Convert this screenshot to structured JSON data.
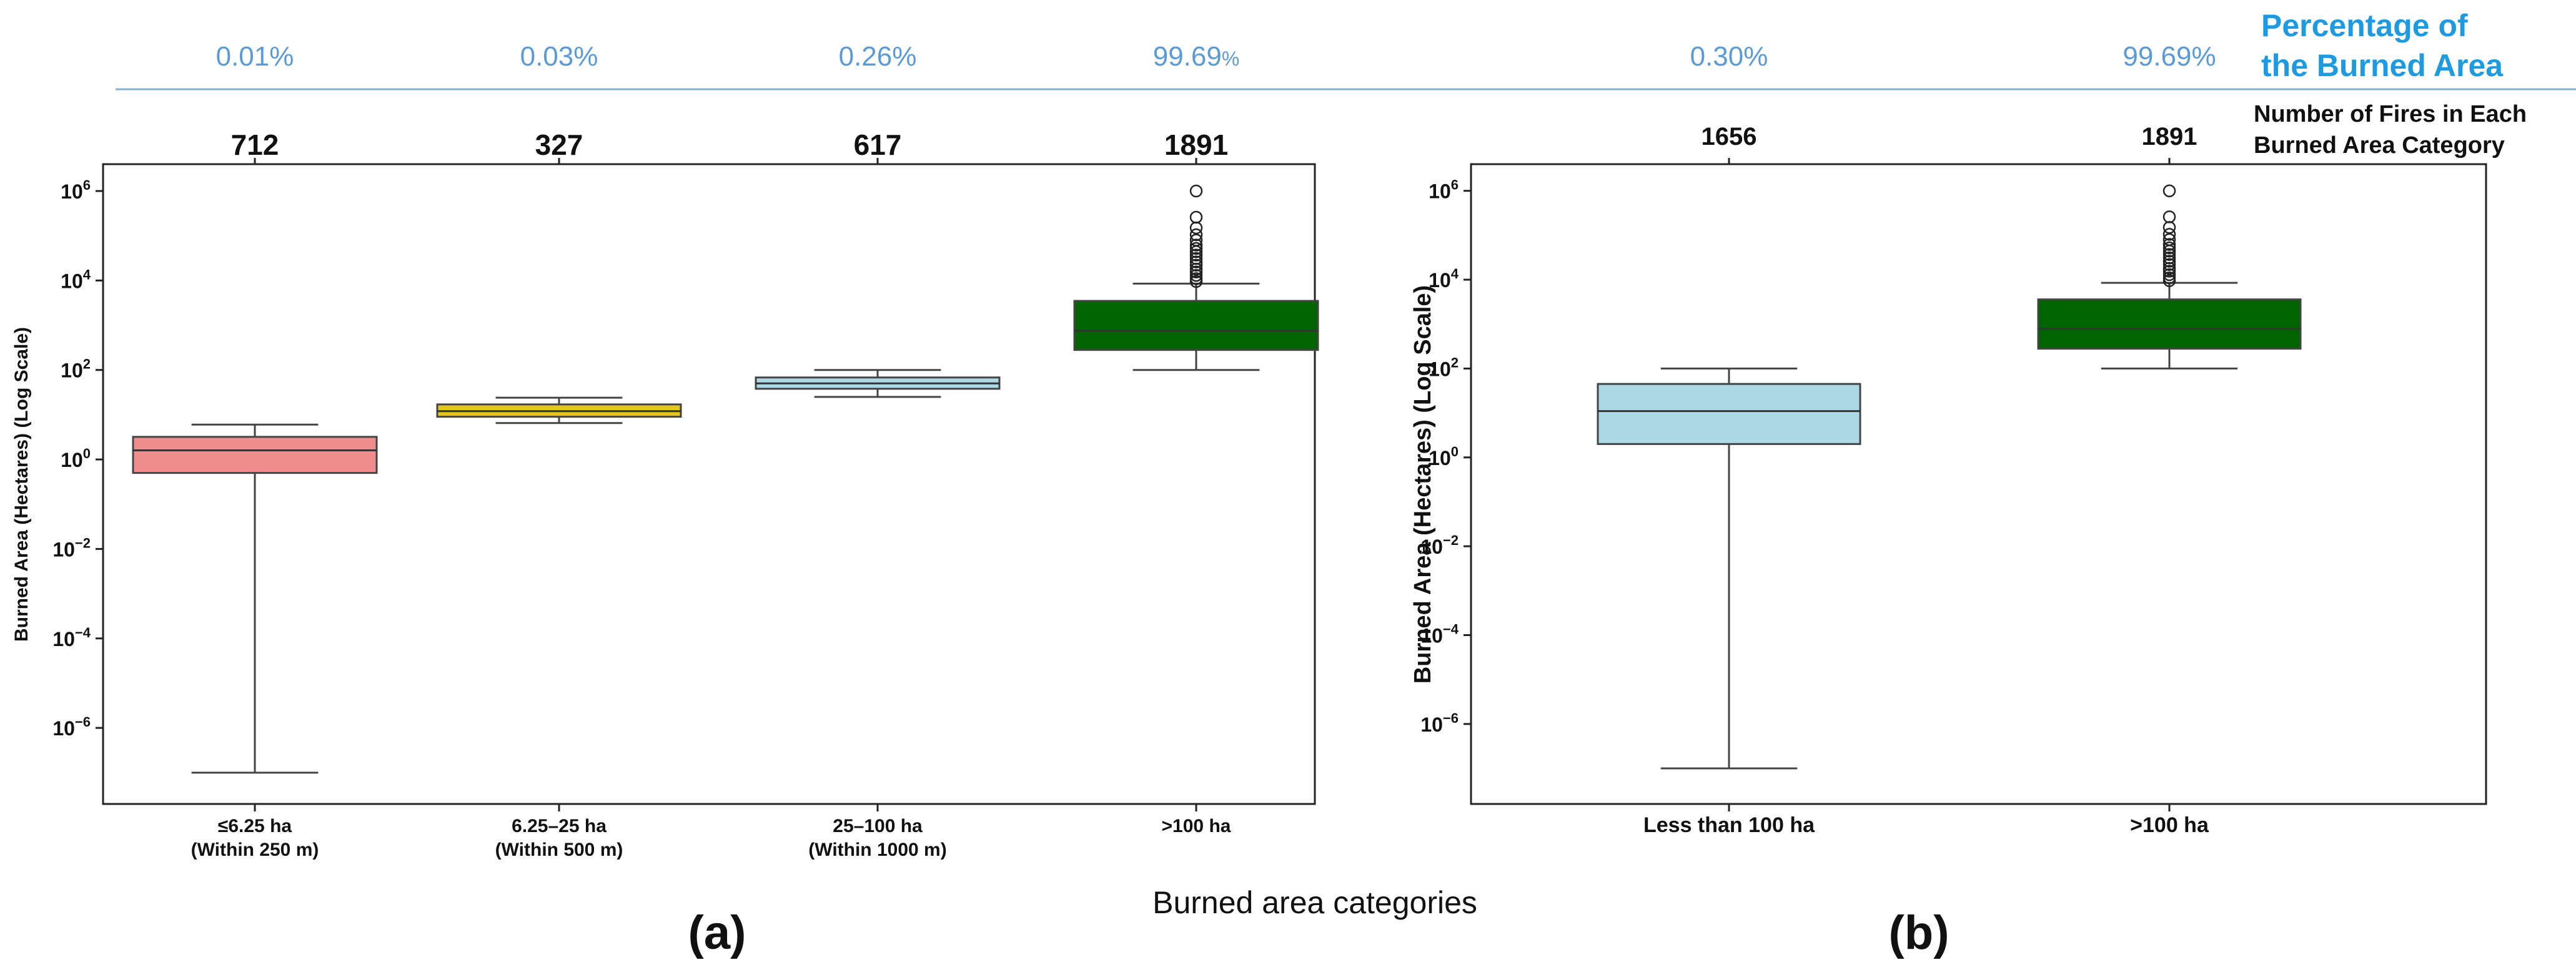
{
  "figure": {
    "xlabel": "Burned area categories",
    "panel_labels": [
      "(a)",
      "(b)"
    ],
    "legend": {
      "pct_line1": "Percentage of",
      "pct_line2": "the Burned Area",
      "count_line1": "Number of Fires in Each",
      "count_line2": "Burned Area Category"
    },
    "ytick_labels": [
      {
        "base": "10",
        "exp": "−6"
      },
      {
        "base": "10",
        "exp": "−4"
      },
      {
        "base": "10",
        "exp": "−2"
      },
      {
        "base": "10",
        "exp": "0"
      },
      {
        "base": "10",
        "exp": "2"
      },
      {
        "base": "10",
        "exp": "4"
      },
      {
        "base": "10",
        "exp": "6"
      }
    ],
    "colors": {
      "pct_text": "#5b9bd5",
      "legend_pct_text": "#1e9be0",
      "divider": "#7fb3d5"
    }
  },
  "chart_data": [
    {
      "type": "box",
      "panel": "(a)",
      "ylabel": "Burned Area (Hectares) (Log Scale)",
      "yscale": "log",
      "ylim_exp": [
        -7.7,
        6.6
      ],
      "yticks_exp": [
        -6,
        -4,
        -2,
        0,
        2,
        4,
        6
      ],
      "categories": [
        {
          "line1": "≤6.25 ha",
          "line2": "(Within 250 m)",
          "count": "712",
          "pct": "0.01%",
          "color": "#f08e8e",
          "min": 1e-07,
          "q1": 0.5,
          "median": 1.6,
          "q3": 3.2,
          "max": 6.0,
          "fliers": []
        },
        {
          "line1": "6.25–25 ha",
          "line2": "(Within 500 m)",
          "count": "327",
          "pct": "0.03%",
          "color": "#e2c51e",
          "min": 6.5,
          "q1": 9,
          "median": 12,
          "q3": 17,
          "max": 24,
          "fliers": []
        },
        {
          "line1": "25–100 ha",
          "line2": "(Within 1000 m)",
          "count": "617",
          "pct": "0.26%",
          "color": "#add8e6",
          "min": 25,
          "q1": 38,
          "median": 50,
          "q3": 68,
          "max": 100,
          "fliers": []
        },
        {
          "line1": ">100 ha",
          "line2": "",
          "count": "1891",
          "pct_num": "99.69",
          "pct_unit": "%",
          "color": "#006400",
          "min": 100,
          "q1": 280,
          "median": 750,
          "q3": 3500,
          "max": 8500,
          "fliers": [
            9500,
            11000,
            13000,
            15500,
            18000,
            22000,
            26000,
            31000,
            37000,
            44000,
            52000,
            62000,
            80000,
            105000,
            150000,
            260000,
            1000000
          ]
        }
      ]
    },
    {
      "type": "box",
      "panel": "(b)",
      "ylabel": "Burned Area (Hectares) (Log Scale)",
      "yscale": "log",
      "ylim_exp": [
        -7.8,
        6.6
      ],
      "yticks_exp": [
        -6,
        -4,
        -2,
        0,
        2,
        4,
        6
      ],
      "categories": [
        {
          "line1": "Less than 100 ha",
          "line2": "",
          "count": "1656",
          "pct": "0.30%",
          "color": "#add8e6",
          "min": 1e-07,
          "q1": 2.0,
          "median": 11,
          "q3": 45,
          "max": 100,
          "fliers": []
        },
        {
          "line1": ">100 ha",
          "line2": "",
          "count": "1891",
          "pct": "99.69%",
          "color": "#006400",
          "min": 100,
          "q1": 280,
          "median": 780,
          "q3": 3600,
          "max": 8500,
          "fliers": [
            9500,
            11000,
            13000,
            15500,
            18000,
            22000,
            26000,
            31000,
            37000,
            44000,
            52000,
            62000,
            80000,
            105000,
            150000,
            260000,
            1000000
          ]
        }
      ]
    }
  ]
}
